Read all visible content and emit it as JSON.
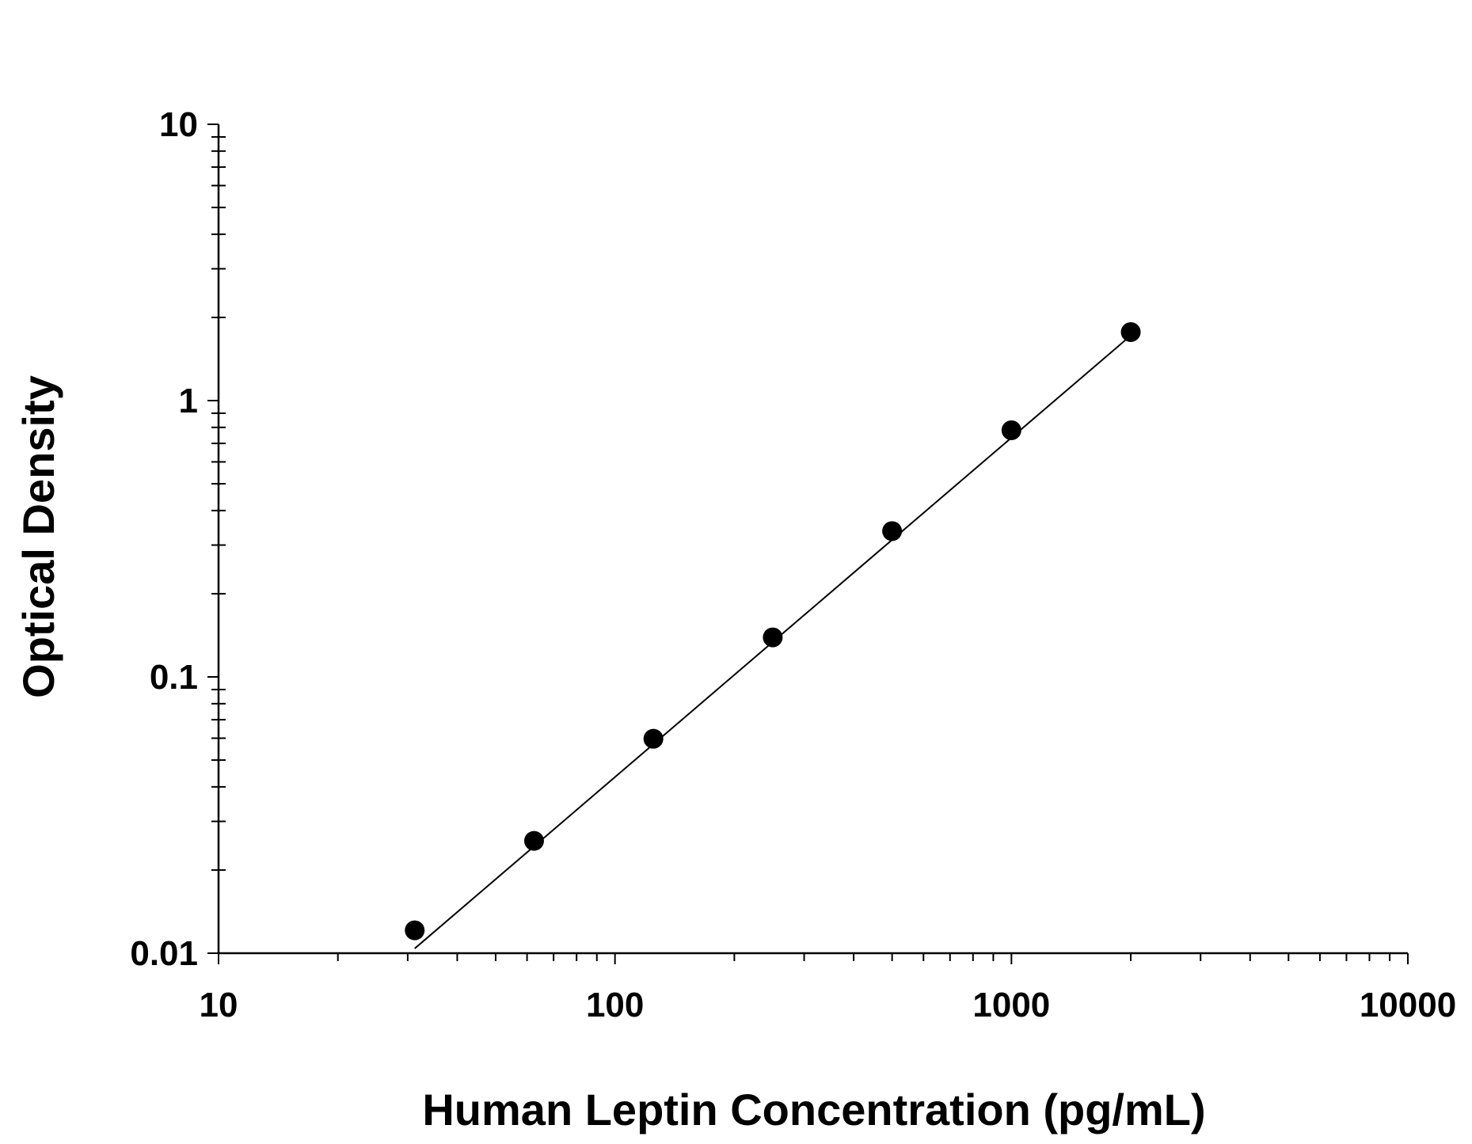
{
  "chart_data": {
    "type": "scatter",
    "title": "",
    "xlabel": "Human Leptin Concentration (pg/mL)",
    "ylabel": "Optical Density",
    "x_scale": "log",
    "y_scale": "log",
    "xlim": [
      10,
      10000
    ],
    "ylim": [
      0.01,
      10
    ],
    "x_ticks": [
      "10",
      "100",
      "1000",
      "10000"
    ],
    "y_ticks": [
      "0.01",
      "0.1",
      "1",
      "10"
    ],
    "grid": false,
    "legend": "none",
    "series": [
      {
        "x": [
          31.25,
          62.5,
          125,
          250,
          500,
          1000,
          2000
        ],
        "y": [
          0.0121,
          0.0255,
          0.0597,
          0.139,
          0.337,
          0.781,
          1.77
        ]
      }
    ],
    "fit_line": {
      "x": [
        31.25,
        2000
      ],
      "y": [
        0.0104,
        1.72
      ]
    },
    "colors": {
      "marker": "#000000",
      "line": "#000000",
      "axis": "#000000"
    }
  }
}
